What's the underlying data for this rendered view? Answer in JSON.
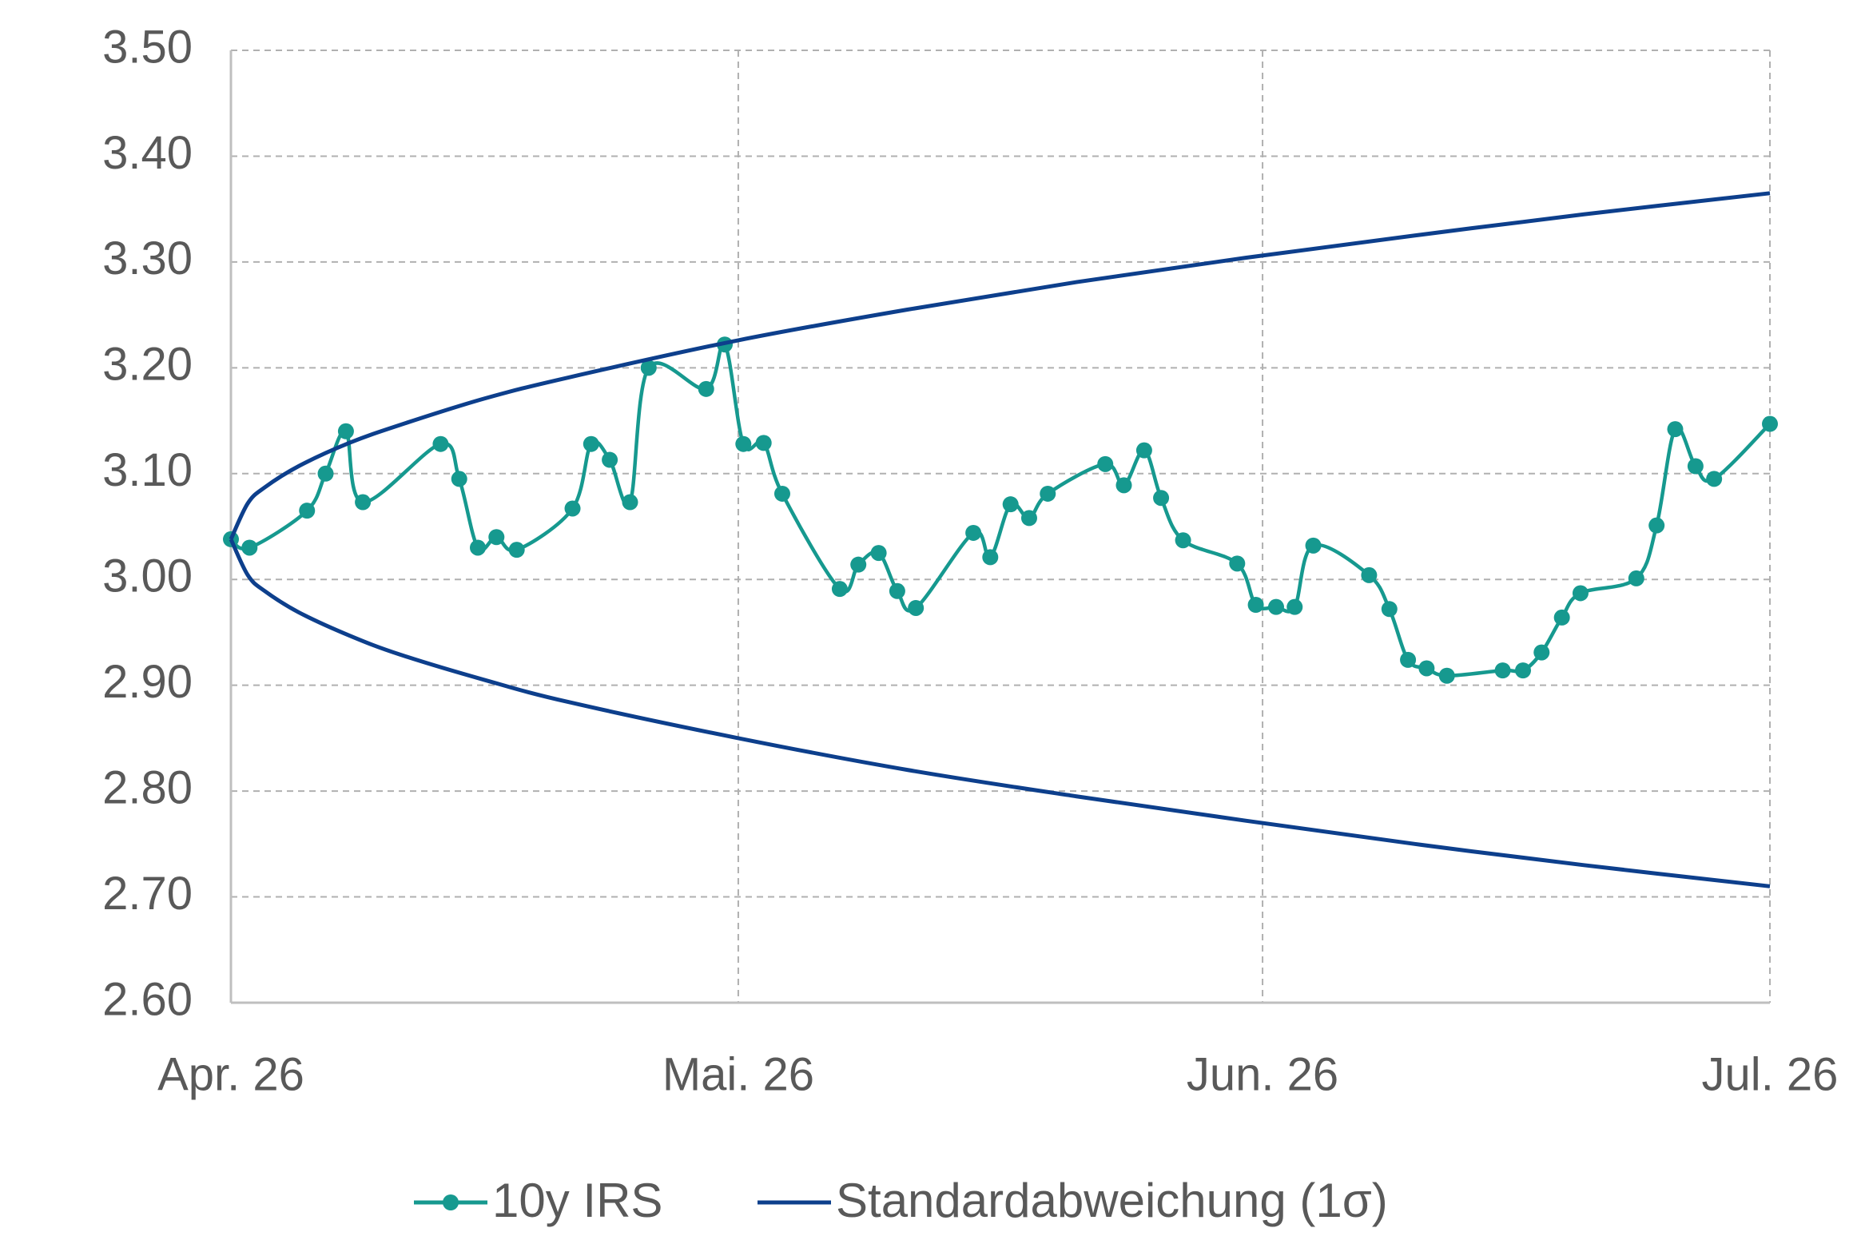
{
  "chart_data": {
    "type": "line",
    "xlim": [
      0,
      91
    ],
    "xticks": [
      {
        "value": 0,
        "label": "Apr. 26"
      },
      {
        "value": 30,
        "label": "Mai. 26"
      },
      {
        "value": 61,
        "label": "Jun. 26"
      },
      {
        "value": 91,
        "label": "Jul. 26"
      }
    ],
    "ylim": [
      2.6,
      3.5
    ],
    "yticks": [
      {
        "value": 2.6,
        "label": "2.60"
      },
      {
        "value": 2.7,
        "label": "2.70"
      },
      {
        "value": 2.8,
        "label": "2.80"
      },
      {
        "value": 2.9,
        "label": "2.90"
      },
      {
        "value": 3.0,
        "label": "3.00"
      },
      {
        "value": 3.1,
        "label": "3.10"
      },
      {
        "value": 3.2,
        "label": "3.20"
      },
      {
        "value": 3.3,
        "label": "3.30"
      },
      {
        "value": 3.4,
        "label": "3.40"
      },
      {
        "value": 3.5,
        "label": "3.50"
      }
    ],
    "grid": true,
    "legend": "bottom",
    "series": [
      {
        "name": "10y IRS",
        "color": "#16998f",
        "markers": true,
        "x": [
          0,
          1.1,
          4.5,
          5.6,
          6.8,
          7.8,
          12.4,
          13.5,
          14.6,
          15.7,
          16.9,
          20.2,
          21.3,
          22.4,
          23.6,
          24.7,
          28.1,
          29.2,
          30.3,
          31.5,
          32.6,
          36.0,
          37.1,
          38.3,
          39.4,
          40.5,
          43.9,
          44.9,
          46.1,
          47.2,
          48.3,
          51.7,
          52.8,
          54.0,
          55.0,
          56.3,
          59.5,
          60.6,
          61.8,
          62.9,
          64.0,
          67.3,
          68.5,
          69.6,
          70.7,
          71.9,
          75.2,
          76.4,
          77.5,
          78.7,
          79.8,
          83.1,
          84.3,
          85.4,
          86.6,
          87.7,
          91.0
        ],
        "values": [
          3.038,
          3.03,
          3.065,
          3.1,
          3.14,
          3.073,
          3.128,
          3.095,
          3.03,
          3.04,
          3.028,
          3.067,
          3.128,
          3.113,
          3.073,
          3.2,
          3.18,
          3.222,
          3.128,
          3.129,
          3.081,
          2.991,
          3.014,
          3.025,
          2.989,
          2.973,
          3.044,
          3.021,
          3.071,
          3.058,
          3.081,
          3.109,
          3.089,
          3.122,
          3.077,
          3.037,
          3.015,
          2.976,
          2.974,
          2.974,
          3.032,
          3.004,
          2.972,
          2.924,
          2.916,
          2.909,
          2.914,
          2.914,
          2.931,
          2.964,
          2.987,
          3.001,
          3.051,
          3.142,
          3.107,
          3.095,
          3.147
        ]
      },
      {
        "name": "Standardabweichung (1σ)",
        "color": "#0d3f8c",
        "markers": false,
        "x": [
          0,
          1,
          2,
          4,
          7,
          10,
          15,
          20,
          30,
          40,
          50,
          60,
          70,
          80,
          91
        ],
        "values": [
          3.038,
          3.072,
          3.087,
          3.107,
          3.129,
          3.146,
          3.171,
          3.191,
          3.226,
          3.255,
          3.281,
          3.304,
          3.325,
          3.345,
          3.365
        ],
        "lower": [
          3.038,
          3.004,
          2.989,
          2.969,
          2.947,
          2.929,
          2.905,
          2.884,
          2.85,
          2.82,
          2.795,
          2.772,
          2.75,
          2.73,
          2.71
        ]
      }
    ]
  }
}
